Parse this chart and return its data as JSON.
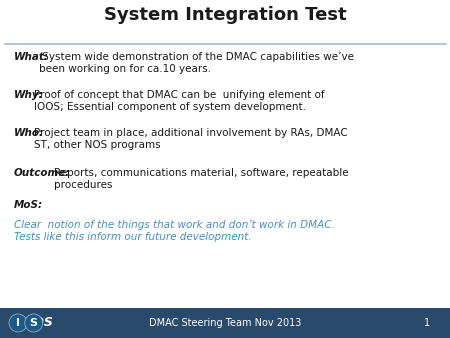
{
  "title": "System Integration Test",
  "title_fontsize": 13,
  "bg_color": "#ffffff",
  "footer_bar_color": "#2a4a6b",
  "footer_text": "DMAC Steering Team Nov 2013",
  "footer_page": "1",
  "footer_fontsize": 7,
  "footer_text_color": "#ffffff",
  "blue_color": "#4090c8",
  "black_color": "#1a1a1a",
  "separator_color": "#aabbd0",
  "content": [
    {
      "label": "What",
      "colon": ":",
      "text": " System wide demonstration of the DMAC capabilities we’ve been working on for ca.10 years.",
      "text_color": "#1a1a1a",
      "text_italic": false
    },
    {
      "label": "Why:",
      "colon": "",
      "text": "Proof of concept that DMAC can be  unifying element of IOOS; Essential component of system development.",
      "text_color": "#1a1a1a",
      "text_italic": false
    },
    {
      "label": "Who:",
      "colon": "",
      "text": "Project team in place, additional involvement by RAs, DMAC ST, other NOS programs",
      "text_color": "#1a1a1a",
      "text_italic": false
    },
    {
      "label": "Outcome:",
      "colon": "",
      "text": "Reports, communications material, software, repeatable procedures",
      "text_color": "#1a1a1a",
      "text_italic": false
    },
    {
      "label": "MoS:",
      "colon": "",
      "text": "",
      "text_color": "#1a1a1a",
      "text_italic": false
    },
    {
      "label": "",
      "colon": "",
      "text": "Clear  notion of the things that work and don’t work in DMAC. Tests like this inform our future development.",
      "text_color": "#4090c8",
      "text_italic": true
    }
  ]
}
